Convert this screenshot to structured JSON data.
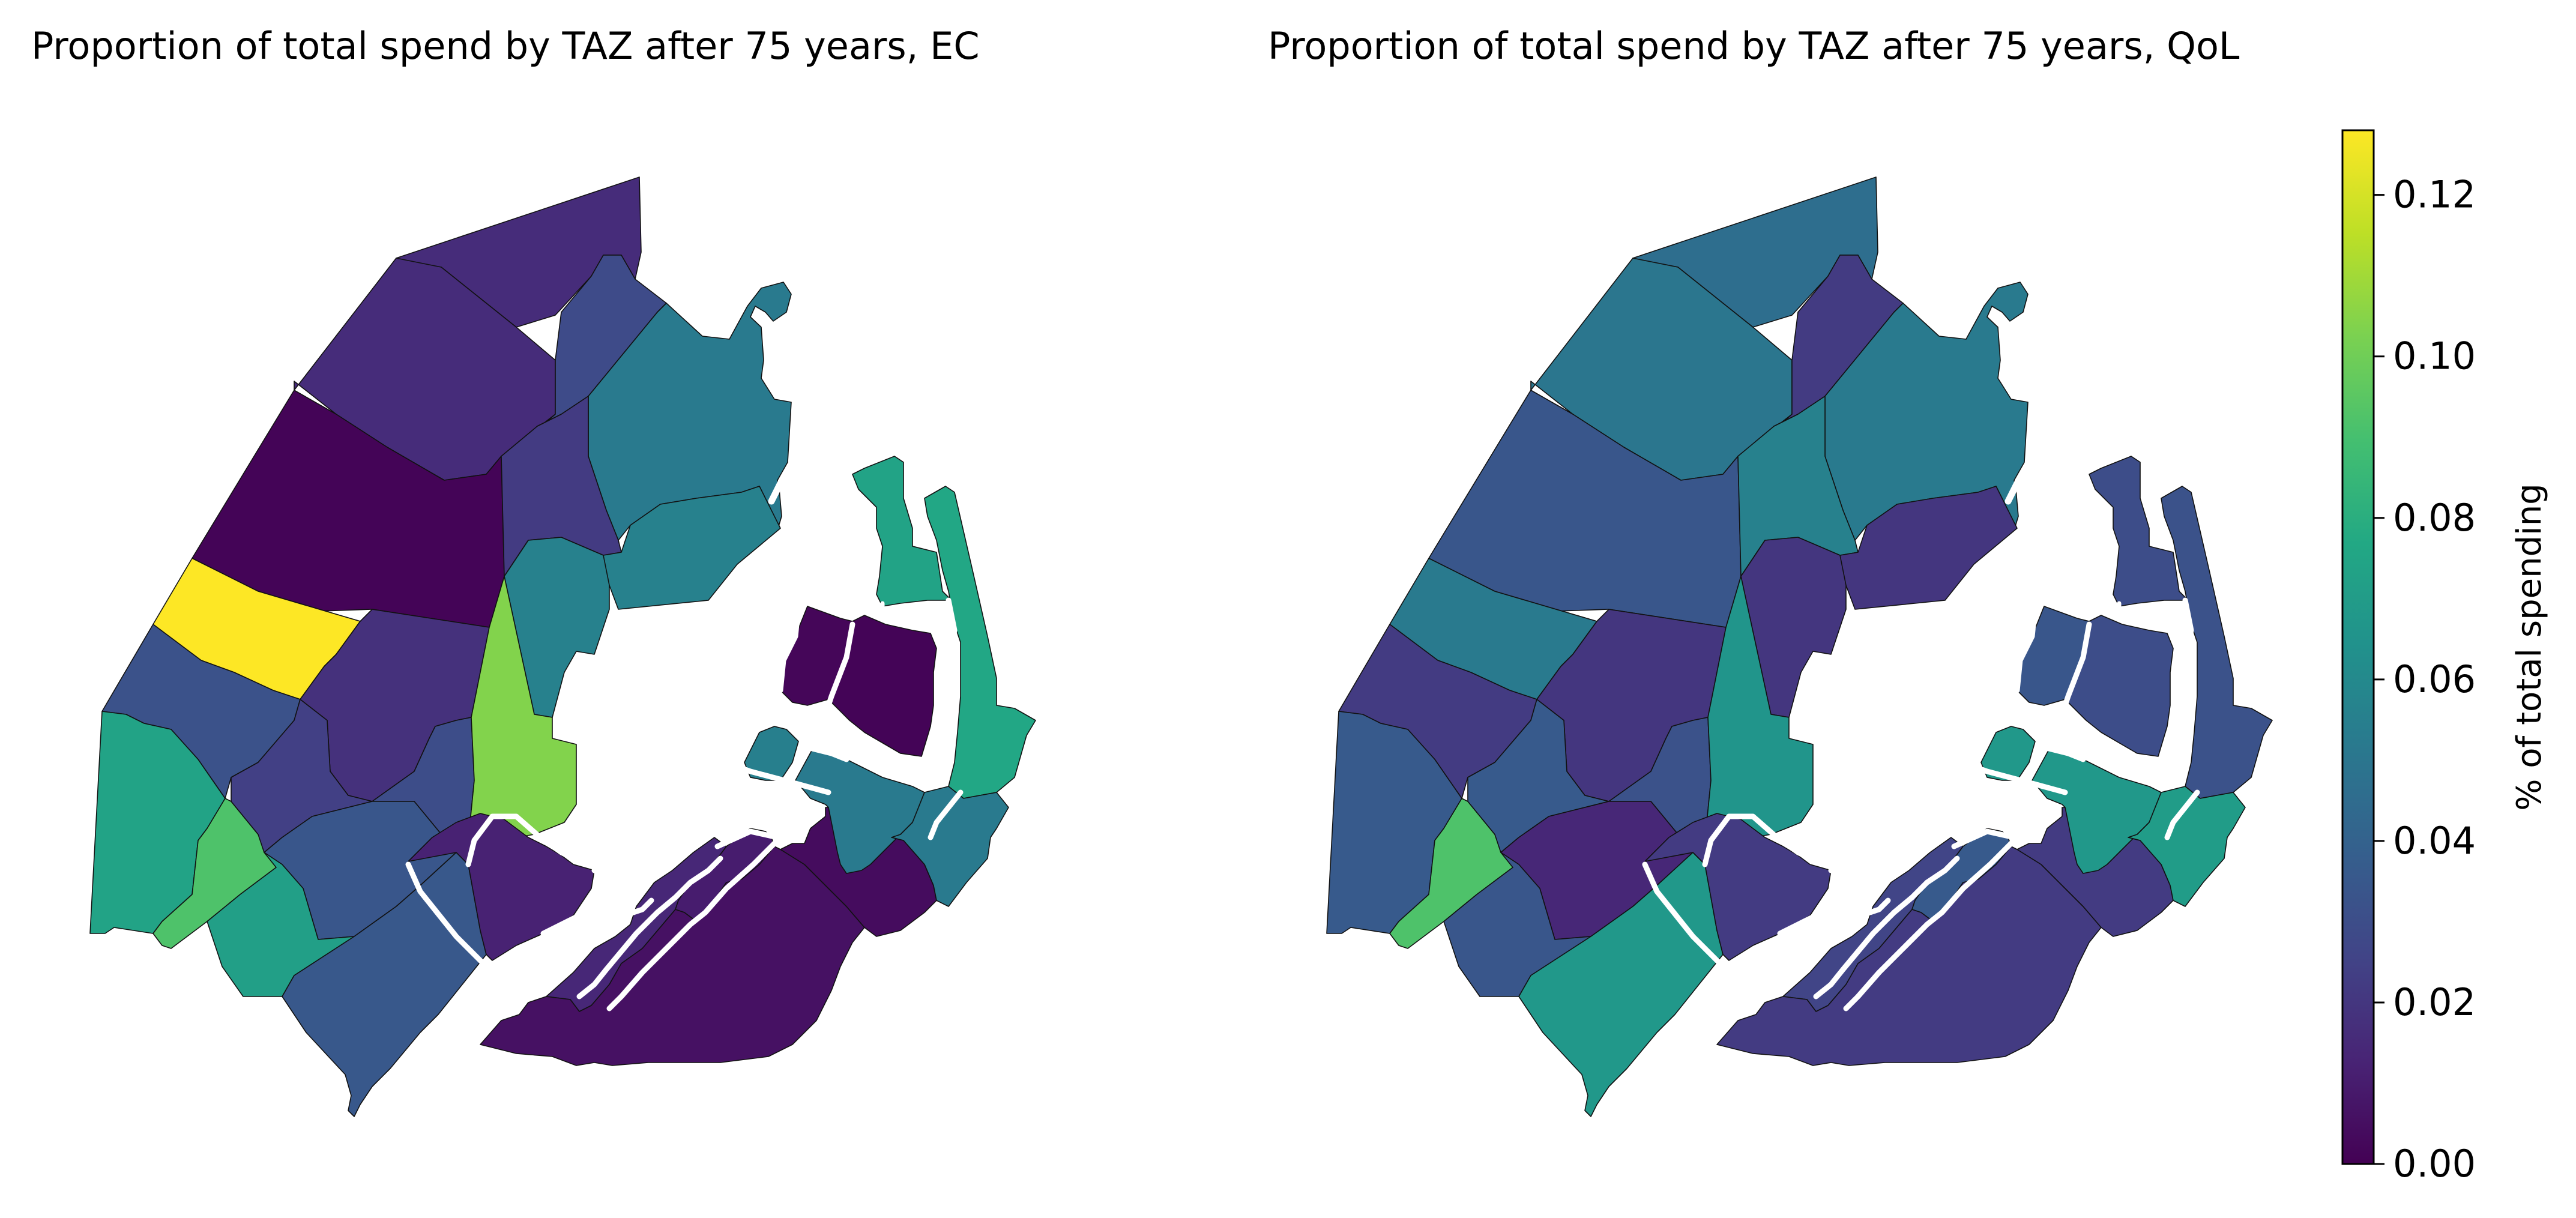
{
  "maps": [
    {
      "id": "ec",
      "title": "Proportion of total spend by TAZ after 75 years, EC",
      "zones": [
        {
          "id": "north-top",
          "value": 0.016
        },
        {
          "id": "north-west",
          "value": 0.016
        },
        {
          "id": "north-east-dark",
          "value": 0.029
        },
        {
          "id": "north-east-teal",
          "value": 0.052
        },
        {
          "id": "mid-west-dark",
          "value": 0.001
        },
        {
          "id": "mid-purple",
          "value": 0.022
        },
        {
          "id": "mid-teal",
          "value": 0.056
        },
        {
          "id": "yellow-block",
          "value": 0.128
        },
        {
          "id": "west-slate",
          "value": 0.032
        },
        {
          "id": "west-teal",
          "value": 0.074
        },
        {
          "id": "green-strip",
          "value": 0.092
        },
        {
          "id": "center-purple",
          "value": 0.018
        },
        {
          "id": "center-slate",
          "value": 0.03
        },
        {
          "id": "lime-block",
          "value": 0.104
        },
        {
          "id": "center-east-purple",
          "value": 0.012
        },
        {
          "id": "lake-west",
          "value": 0.024
        },
        {
          "id": "lake-center",
          "value": 0.034
        },
        {
          "id": "sw-teal",
          "value": 0.072
        },
        {
          "id": "sw-slate",
          "value": 0.035
        },
        {
          "id": "ring-inner",
          "value": 0.012
        },
        {
          "id": "south-a",
          "value": 0.014
        },
        {
          "id": "south-b",
          "value": 0.01
        },
        {
          "id": "south-c",
          "value": 0.006
        },
        {
          "id": "south-d",
          "value": 0.004
        },
        {
          "id": "island-north",
          "value": 0.002
        },
        {
          "id": "island-east",
          "value": 0.001
        },
        {
          "id": "harbour-teal",
          "value": 0.074
        },
        {
          "id": "east-strip",
          "value": 0.076
        },
        {
          "id": "small-teal",
          "value": 0.055
        },
        {
          "id": "se-teal",
          "value": 0.052
        },
        {
          "id": "se-tip",
          "value": 0.052
        }
      ]
    },
    {
      "id": "qol",
      "title": "Proportion of total spend by TAZ after 75 years, QoL",
      "zones": [
        {
          "id": "north-top",
          "value": 0.046
        },
        {
          "id": "north-west",
          "value": 0.05
        },
        {
          "id": "north-east-dark",
          "value": 0.022
        },
        {
          "id": "north-east-teal",
          "value": 0.052
        },
        {
          "id": "mid-west-dark",
          "value": 0.034
        },
        {
          "id": "mid-purple",
          "value": 0.056
        },
        {
          "id": "mid-teal",
          "value": 0.02
        },
        {
          "id": "yellow-block",
          "value": 0.052
        },
        {
          "id": "west-slate",
          "value": 0.022
        },
        {
          "id": "west-teal",
          "value": 0.036
        },
        {
          "id": "green-strip",
          "value": 0.092
        },
        {
          "id": "center-purple",
          "value": 0.02
        },
        {
          "id": "center-slate",
          "value": 0.032
        },
        {
          "id": "lime-block",
          "value": 0.066
        },
        {
          "id": "center-east-purple",
          "value": 0.052
        },
        {
          "id": "lake-west",
          "value": 0.036
        },
        {
          "id": "lake-center",
          "value": 0.014
        },
        {
          "id": "sw-teal",
          "value": 0.034
        },
        {
          "id": "sw-slate",
          "value": 0.068
        },
        {
          "id": "ring-inner",
          "value": 0.022
        },
        {
          "id": "south-a",
          "value": 0.026
        },
        {
          "id": "south-b",
          "value": 0.036
        },
        {
          "id": "south-c",
          "value": 0.022
        },
        {
          "id": "south-d",
          "value": 0.022
        },
        {
          "id": "island-north",
          "value": 0.034
        },
        {
          "id": "island-east",
          "value": 0.03
        },
        {
          "id": "harbour-teal",
          "value": 0.03
        },
        {
          "id": "east-strip",
          "value": 0.032
        },
        {
          "id": "small-teal",
          "value": 0.068
        },
        {
          "id": "se-teal",
          "value": 0.068
        },
        {
          "id": "se-tip",
          "value": 0.07
        }
      ]
    }
  ],
  "colorbar": {
    "label": "% of total spending",
    "colormap": "viridis",
    "min": 0.0,
    "max": 0.128,
    "ticks": [
      "0.00",
      "0.02",
      "0.04",
      "0.06",
      "0.08",
      "0.10",
      "0.12"
    ]
  }
}
